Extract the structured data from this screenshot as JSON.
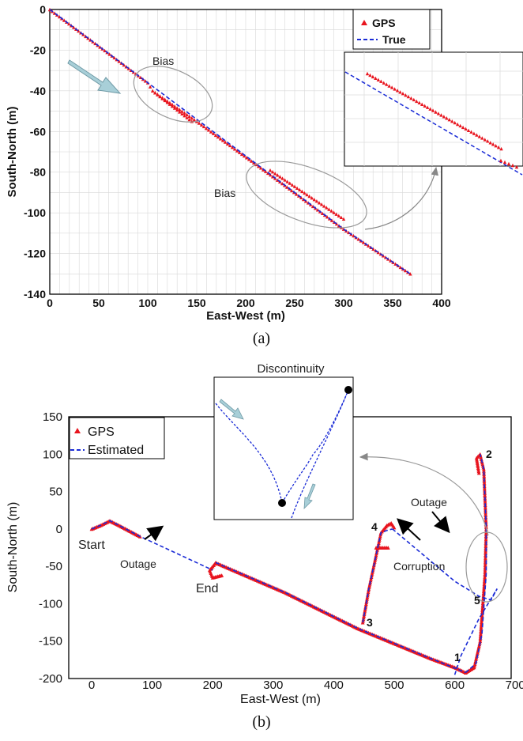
{
  "chart_data": [
    {
      "type": "line",
      "panel": "(a)",
      "xlabel": "East-West (m)",
      "ylabel": "South-North (m)",
      "xlim": [
        0,
        400
      ],
      "ylim": [
        -140,
        0
      ],
      "xticks": [
        0,
        50,
        100,
        150,
        200,
        250,
        300,
        350,
        400
      ],
      "yticks": [
        0,
        -20,
        -40,
        -60,
        -80,
        -100,
        -120,
        -140
      ],
      "grid": true,
      "legend_position": "top-right",
      "series": [
        {
          "name": "GPS",
          "style": "red triangle markers",
          "segments": [
            [
              [
                0,
                0
              ],
              [
                100,
                -36
              ],
              [
                105,
                -40
              ],
              [
                150,
                -55
              ],
              [
                230,
                -83
              ],
              [
                300,
                -108
              ],
              [
                368,
                -130
              ]
            ],
            [
              [
                105,
                -40
              ],
              [
                145,
                -55
              ]
            ],
            [
              [
                225,
                -79
              ],
              [
                300,
                -103
              ]
            ]
          ]
        },
        {
          "name": "True",
          "style": "blue dashed",
          "x": [
            0,
            100,
            150,
            200,
            250,
            300,
            368
          ],
          "y": [
            0,
            -36,
            -54,
            -72,
            -90,
            -108,
            -130
          ]
        }
      ],
      "annotations": [
        "Bias",
        "Bias"
      ]
    },
    {
      "type": "line",
      "panel": "(b)",
      "xlabel": "East-West (m)",
      "ylabel": "South-North (m)",
      "xlim": [
        -50,
        700
      ],
      "ylim": [
        -200,
        150
      ],
      "xticks": [
        0,
        100,
        200,
        300,
        400,
        500,
        600,
        700
      ],
      "yticks": [
        150,
        100,
        50,
        0,
        -50,
        -100,
        -150,
        -200
      ],
      "grid": false,
      "legend_position": "top-left",
      "series": [
        {
          "name": "GPS",
          "style": "red triangle markers",
          "segments": [
            [
              [
                0,
                0
              ],
              [
                15,
                5
              ],
              [
                30,
                11
              ],
              [
                45,
                5
              ],
              [
                80,
                -10
              ]
            ],
            [
              [
                205,
                -45
              ],
              [
                320,
                -85
              ],
              [
                440,
                -133
              ],
              [
                560,
                -173
              ],
              [
                600,
                -185
              ],
              [
                618,
                -192
              ]
            ],
            [
              [
                618,
                -192
              ],
              [
                632,
                -185
              ],
              [
                642,
                -150
              ],
              [
                650,
                -60
              ],
              [
                652,
                0
              ],
              [
                648,
                80
              ],
              [
                642,
                100
              ],
              [
                636,
                95
              ],
              [
                640,
                75
              ]
            ],
            [
              [
                448,
                -125
              ],
              [
                458,
                -80
              ],
              [
                470,
                -35
              ],
              [
                478,
                -5
              ],
              [
                488,
                5
              ],
              [
                495,
                8
              ],
              [
                500,
                2
              ]
            ],
            [
              [
                470,
                -25
              ],
              [
                490,
                -25
              ]
            ],
            [
              [
                205,
                -45
              ],
              [
                195,
                -55
              ],
              [
                200,
                -65
              ],
              [
                215,
                -62
              ]
            ]
          ]
        },
        {
          "name": "Estimated",
          "style": "blue dashed",
          "segments": [
            [
              [
                0,
                0
              ],
              [
                15,
                5
              ],
              [
                30,
                11
              ],
              [
                45,
                5
              ],
              [
                80,
                -10
              ],
              [
                200,
                -55
              ]
            ],
            [
              [
                205,
                -45
              ],
              [
                320,
                -85
              ],
              [
                440,
                -133
              ],
              [
                560,
                -173
              ],
              [
                618,
                -192
              ]
            ],
            [
              [
                618,
                -192
              ],
              [
                635,
                -180
              ],
              [
                645,
                -140
              ],
              [
                652,
                -60
              ],
              [
                652,
                0
              ],
              [
                648,
                80
              ],
              [
                642,
                100
              ]
            ],
            [
              [
                448,
                -125
              ],
              [
                458,
                -80
              ],
              [
                470,
                -35
              ],
              [
                478,
                -5
              ],
              [
                488,
                -2
              ],
              [
                497,
                0
              ]
            ],
            [
              [
                497,
                0
              ],
              [
                600,
                -70
              ],
              [
                640,
                -90
              ],
              [
                660,
                -95
              ],
              [
                670,
                -80
              ]
            ],
            [
              [
                600,
                -195
              ],
              [
                610,
                -170
              ],
              [
                640,
                -120
              ],
              [
                670,
                -80
              ]
            ]
          ]
        }
      ],
      "annotations": [
        "Start",
        "Outage",
        "End",
        "1",
        "2",
        "3",
        "4",
        "5",
        "Outage",
        "Corruption",
        "Discontinuity"
      ]
    }
  ],
  "labels": {
    "a": {
      "xlabel": "East-West (m)",
      "ylabel": "South-North (m)",
      "legend_gps": "GPS",
      "legend_true": "True",
      "bias1": "Bias",
      "bias2": "Bias",
      "caption": "(a)"
    },
    "b": {
      "xlabel": "East-West (m)",
      "ylabel": "South-North (m)",
      "legend_gps": "GPS",
      "legend_est": "Estimated",
      "start": "Start",
      "end": "End",
      "outage1": "Outage",
      "outage2": "Outage",
      "corruption": "Corruption",
      "discontinuity": "Discontinuity",
      "n1": "1",
      "n2": "2",
      "n3": "3",
      "n4": "4",
      "n5": "5",
      "caption": "(b)"
    }
  },
  "colors": {
    "gps": "#e8141e",
    "true": "#1a2bd6",
    "arrow_fill": "#a8cfd8",
    "ellipse": "#9a9a9a",
    "grid": "#d8d8d8"
  }
}
